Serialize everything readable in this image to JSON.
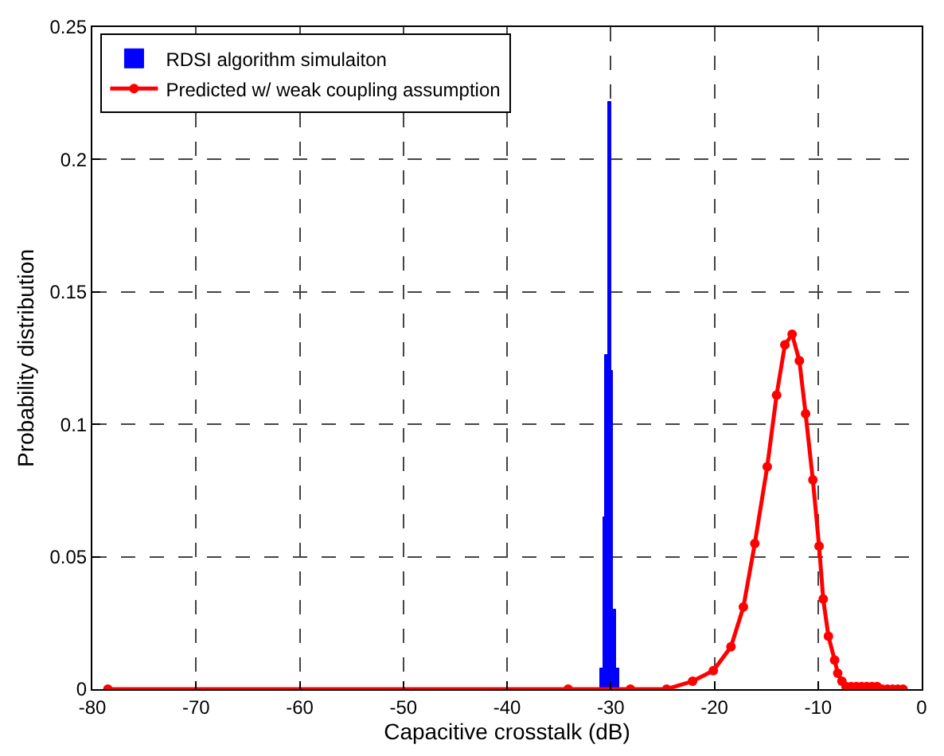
{
  "chart_data": {
    "type": "histogram",
    "xlabel": "Capacitive crosstalk (dB)",
    "ylabel": "Probability distribution",
    "xlim": [
      -80,
      0
    ],
    "xticks": [
      -80,
      -70,
      -60,
      -50,
      -40,
      -30,
      -20,
      -10,
      0
    ],
    "ylim": [
      0,
      0.25
    ],
    "yticks": [
      0,
      0.05,
      0.1,
      0.15,
      0.2,
      0.25
    ],
    "grid": true,
    "legend": "top left",
    "series": [
      {
        "name": "RDSI algorithm simulaiton",
        "color": "#0000ff",
        "bins": [
          -31.0,
          -30.75,
          -30.5,
          -30.25,
          -30.0,
          -29.75,
          -29.5,
          -29.25
        ],
        "values": [
          0.008,
          0.065,
          0.126,
          0.222,
          0.12,
          0.03,
          0.008
        ]
      },
      {
        "name": "Predicted w/ weak coupling assumption",
        "type": "line",
        "color": "#ff0000",
        "marker": "circle",
        "line_style": "solid",
        "x": [
          -78.5,
          -34.1,
          -28.1,
          -24.6,
          -22.1,
          -20.1,
          -18.4,
          -17.2,
          -16.1,
          -14.9,
          -14.0,
          -13.2,
          -12.5,
          -11.8,
          -11.2,
          -10.5,
          -9.9,
          -9.5,
          -9.0,
          -8.4,
          -8.1,
          -7.7,
          -7.3,
          -6.8,
          -6.3,
          -5.8,
          -5.3,
          -4.8,
          -4.3,
          -3.8,
          -3.3,
          -2.8,
          -2.3,
          -1.8
        ],
        "values": [
          0,
          0,
          0,
          0,
          0.003,
          0.007,
          0.016,
          0.031,
          0.055,
          0.084,
          0.111,
          0.13,
          0.134,
          0.124,
          0.104,
          0.079,
          0.054,
          0.034,
          0.02,
          0.011,
          0.006,
          0.003,
          0.001,
          0.001,
          0.001,
          0.001,
          0.001,
          0.001,
          0.001,
          0,
          0,
          0,
          0,
          0
        ]
      }
    ]
  }
}
